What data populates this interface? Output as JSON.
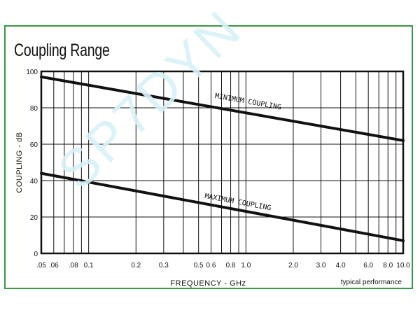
{
  "title": "Coupling Range",
  "watermark": "SP7DYN",
  "colors": {
    "frame": "#3a9a45",
    "lines": "#111111",
    "watermark": "#d8f2f8"
  },
  "note": "typical performance",
  "chart_data": {
    "type": "line",
    "title": "Coupling Range",
    "xlabel": "FREQUENCY - GHz",
    "ylabel": "COUPLING - dB",
    "x_scale": "log",
    "xlim": [
      0.05,
      10.0
    ],
    "ylim": [
      0,
      100
    ],
    "grid": true,
    "x_tick_labels": [
      {
        "value": 0.05,
        "label": ".05"
      },
      {
        "value": 0.06,
        "label": ".06"
      },
      {
        "value": 0.08,
        "label": ".08"
      },
      {
        "value": 0.1,
        "label": "0.1"
      },
      {
        "value": 0.2,
        "label": "0.2"
      },
      {
        "value": 0.3,
        "label": "0.3"
      },
      {
        "value": 0.5,
        "label": "0.5"
      },
      {
        "value": 0.6,
        "label": "0.6"
      },
      {
        "value": 0.8,
        "label": "0.8"
      },
      {
        "value": 1.0,
        "label": "1.0"
      },
      {
        "value": 2.0,
        "label": "2.0"
      },
      {
        "value": 3.0,
        "label": "3.0"
      },
      {
        "value": 4.0,
        "label": "4.0"
      },
      {
        "value": 6.0,
        "label": "6.0"
      },
      {
        "value": 8.0,
        "label": "8.0"
      },
      {
        "value": 10.0,
        "label": "10.0"
      }
    ],
    "x_gridlines": [
      0.05,
      0.06,
      0.07,
      0.08,
      0.09,
      0.1,
      0.2,
      0.3,
      0.4,
      0.5,
      0.6,
      0.7,
      0.8,
      0.9,
      1.0,
      2.0,
      3.0,
      4.0,
      5.0,
      6.0,
      7.0,
      8.0,
      9.0,
      10.0
    ],
    "y_ticks": [
      0,
      20,
      40,
      60,
      80,
      100
    ],
    "series": [
      {
        "name": "MINIMUM COUPLING",
        "x": [
          0.05,
          10.0
        ],
        "y": [
          97,
          62
        ]
      },
      {
        "name": "MAXIMUM COUPLING",
        "x": [
          0.05,
          10.0
        ],
        "y": [
          44,
          7
        ]
      }
    ]
  }
}
